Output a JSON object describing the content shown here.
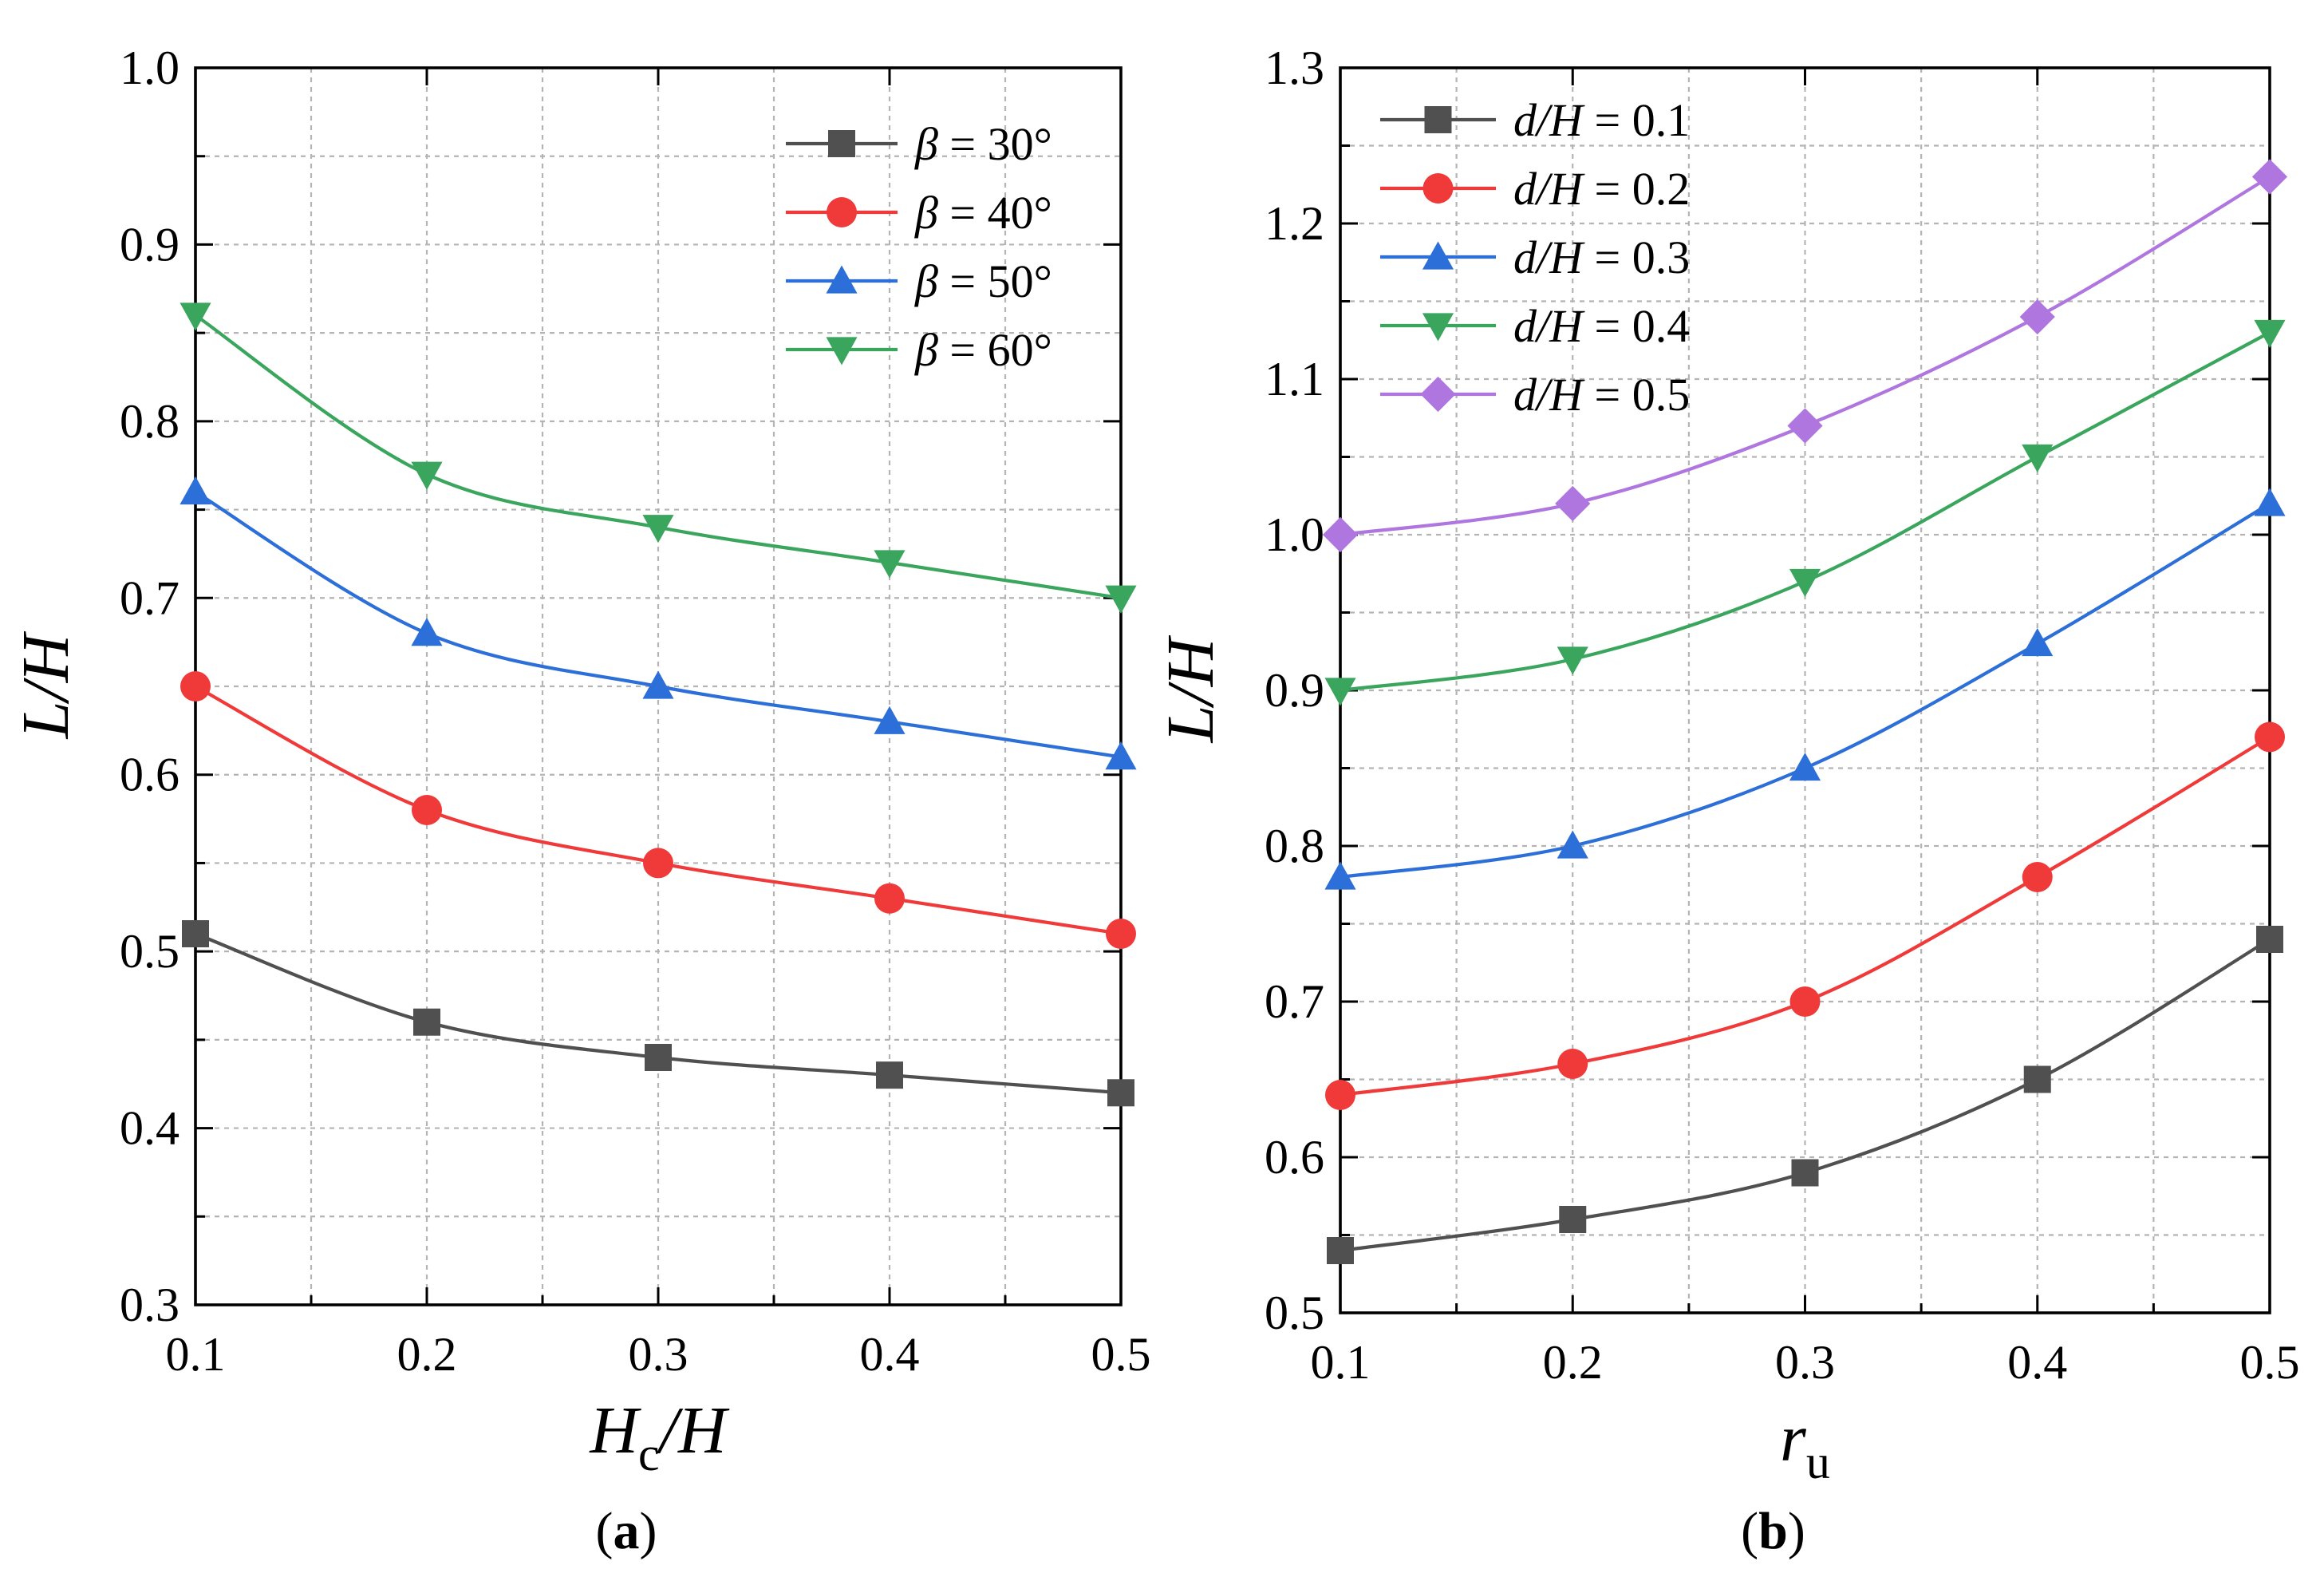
{
  "chart_data": [
    {
      "panel": "a",
      "caption_letter": "a",
      "type": "line",
      "xlabel_main": "H",
      "xlabel_sub": "c",
      "xlabel_tail": "/H",
      "ylabel": "L/H",
      "x_ticks": [
        "0.1",
        "0.2",
        "0.3",
        "0.4",
        "0.5"
      ],
      "y_ticks": [
        "1.0",
        "0.9",
        "0.8",
        "0.7",
        "0.6",
        "0.5",
        "0.4",
        "0.3"
      ],
      "xlim": [
        0.1,
        0.5
      ],
      "ylim": [
        0.3,
        1.0
      ],
      "grid": true,
      "legend_position": "top-right",
      "legend_var": "β",
      "x": [
        0.1,
        0.2,
        0.3,
        0.4,
        0.5
      ],
      "series": [
        {
          "name_var": "β",
          "name_value": " = 30°",
          "color": "#505050",
          "marker": "square",
          "values": [
            0.51,
            0.46,
            0.44,
            0.43,
            0.42
          ]
        },
        {
          "name_var": "β",
          "name_value": " = 40°",
          "color": "#f03a3a",
          "marker": "circle",
          "values": [
            0.65,
            0.58,
            0.55,
            0.53,
            0.51
          ]
        },
        {
          "name_var": "β",
          "name_value": " = 50°",
          "color": "#2d6fd8",
          "marker": "triangle-up",
          "values": [
            0.76,
            0.68,
            0.65,
            0.63,
            0.61
          ]
        },
        {
          "name_var": "β",
          "name_value": " = 60°",
          "color": "#3aa55c",
          "marker": "triangle-down",
          "values": [
            0.86,
            0.77,
            0.74,
            0.72,
            0.7
          ]
        }
      ]
    },
    {
      "panel": "b",
      "caption_letter": "b",
      "type": "line",
      "xlabel_main": "r",
      "xlabel_sub": "u",
      "xlabel_tail": "",
      "ylabel": "L/H",
      "x_ticks": [
        "0.1",
        "0.2",
        "0.3",
        "0.4",
        "0.5"
      ],
      "y_ticks": [
        "1.3",
        "1.2",
        "1.1",
        "1.0",
        "0.9",
        "0.8",
        "0.7",
        "0.6",
        "0.5"
      ],
      "xlim": [
        0.1,
        0.5
      ],
      "ylim": [
        0.5,
        1.3
      ],
      "grid": true,
      "legend_position": "top-left",
      "x": [
        0.1,
        0.2,
        0.3,
        0.4,
        0.5
      ],
      "series": [
        {
          "name_var": "d/H",
          "name_value": " = 0.1",
          "color": "#505050",
          "marker": "square",
          "values": [
            0.54,
            0.56,
            0.59,
            0.65,
            0.74
          ]
        },
        {
          "name_var": "d/H",
          "name_value": " = 0.2",
          "color": "#f03a3a",
          "marker": "circle",
          "values": [
            0.64,
            0.66,
            0.7,
            0.78,
            0.87
          ]
        },
        {
          "name_var": "d/H",
          "name_value": " = 0.3",
          "color": "#2d6fd8",
          "marker": "triangle-up",
          "values": [
            0.78,
            0.8,
            0.85,
            0.93,
            1.02
          ]
        },
        {
          "name_var": "d/H",
          "name_value": " = 0.4",
          "color": "#3aa55c",
          "marker": "triangle-down",
          "values": [
            0.9,
            0.92,
            0.97,
            1.05,
            1.13
          ]
        },
        {
          "name_var": "d/H",
          "name_value": " = 0.5",
          "color": "#b076e0",
          "marker": "diamond",
          "values": [
            1.0,
            1.02,
            1.07,
            1.14,
            1.23
          ]
        }
      ]
    }
  ]
}
